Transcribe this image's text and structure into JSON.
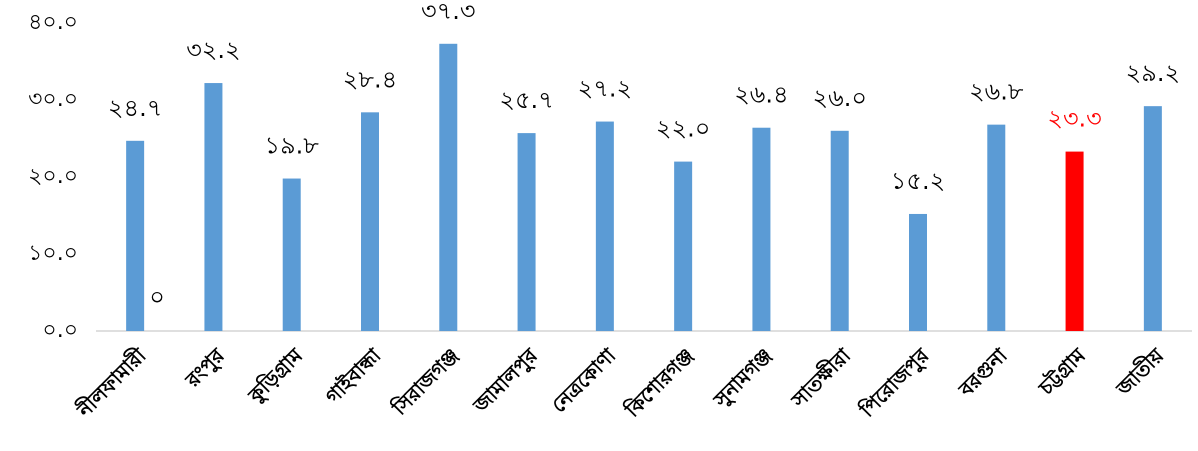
{
  "chart_data": {
    "type": "bar",
    "categories": [
      "নীলফামারী",
      "রংপুর",
      "কুড়িগ্রাম",
      "গাইবান্ধা",
      "সিরাজগঞ্জ",
      "জামালপুর",
      "নেত্রকোণা",
      "কিশোরগঞ্জ",
      "সুনামগঞ্জ",
      "সাতক্ষীরা",
      "পিরোজপুর",
      "বরগুনা",
      "চট্টগ্রাম",
      "জাতীয়"
    ],
    "values": [
      24.7,
      32.2,
      19.8,
      28.4,
      37.3,
      25.7,
      27.2,
      22.0,
      26.4,
      26.0,
      15.2,
      26.8,
      23.3,
      29.2
    ],
    "value_labels": [
      "২৪.৭",
      "৩২.২",
      "১৯.৮",
      "২৮.৪",
      "৩৭.৩",
      "২৫.৭",
      "২৭.২",
      "২২.০",
      "২৬.৪",
      "২৬.০",
      "১৫.২",
      "২৬.৮",
      "২৩.৩",
      "২৯.২"
    ],
    "colors": [
      "#5b9bd5",
      "#5b9bd5",
      "#5b9bd5",
      "#5b9bd5",
      "#5b9bd5",
      "#5b9bd5",
      "#5b9bd5",
      "#5b9bd5",
      "#5b9bd5",
      "#5b9bd5",
      "#5b9bd5",
      "#5b9bd5",
      "#ff0000",
      "#5b9bd5"
    ],
    "value_label_colors": [
      "#000000",
      "#000000",
      "#000000",
      "#000000",
      "#000000",
      "#000000",
      "#000000",
      "#000000",
      "#000000",
      "#000000",
      "#000000",
      "#000000",
      "#ff0000",
      "#000000"
    ],
    "ylim": [
      0,
      40
    ],
    "yticks": [
      {
        "value": 0,
        "label": "০.০"
      },
      {
        "value": 10,
        "label": "১০.০"
      },
      {
        "value": 20,
        "label": "২০.০"
      },
      {
        "value": 30,
        "label": "৩০.০"
      },
      {
        "value": 40,
        "label": "৪০.০"
      }
    ],
    "annotation": "০",
    "grid": false
  }
}
